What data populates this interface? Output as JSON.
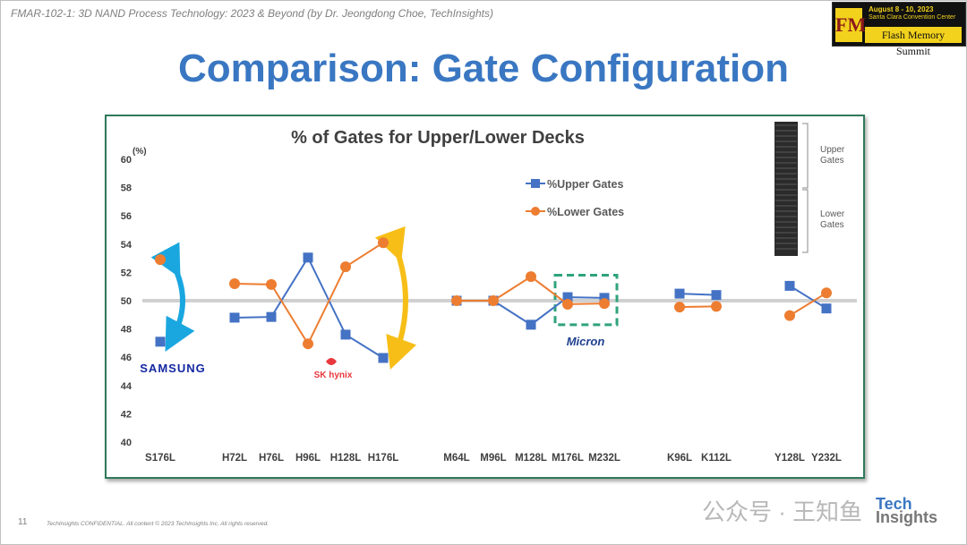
{
  "header": {
    "text": "FMAR-102-1: 3D NAND Process Technology: 2023 & Beyond (by Dr. Jeongdong Choe, TechInsights)"
  },
  "event_logo": {
    "date": "August 8 - 10, 2023",
    "venue": "Santa Clara Convention Center",
    "name": "Flash Memory Summit",
    "mark": "FM"
  },
  "slide_title": "Comparison: Gate Configuration",
  "chart_data": {
    "type": "line",
    "title": "% of Gates for Upper/Lower Decks",
    "ylabel": "(%)",
    "ylim": [
      40,
      60
    ],
    "yticks": [
      40,
      42,
      44,
      46,
      48,
      50,
      52,
      54,
      56,
      58,
      60
    ],
    "categories": [
      "S176L",
      "H72L",
      "H76L",
      "H96L",
      "H128L",
      "H176L",
      "M64L",
      "M96L",
      "M128L",
      "M176L",
      "M232L",
      "K96L",
      "K112L",
      "Y128L",
      "Y232L"
    ],
    "groups": [
      [
        0
      ],
      [
        1,
        2,
        3,
        4,
        5
      ],
      [
        6,
        7,
        8,
        9,
        10
      ],
      [
        11,
        12
      ],
      [
        13,
        14
      ]
    ],
    "series": [
      {
        "name": "%Upper Gates",
        "color": "#4472c4",
        "marker": "square",
        "values": [
          47.1,
          48.8,
          48.85,
          53.05,
          47.6,
          45.95,
          50.0,
          50.0,
          48.3,
          50.25,
          50.2,
          50.5,
          50.4,
          51.05,
          49.45
        ]
      },
      {
        "name": "%Lower Gates",
        "color": "#ed7d31",
        "marker": "circle",
        "values": [
          52.9,
          51.2,
          51.15,
          46.95,
          52.4,
          54.1,
          50.0,
          50.0,
          51.7,
          49.75,
          49.8,
          49.55,
          49.6,
          48.95,
          50.55
        ]
      }
    ],
    "reference_line": 50,
    "legend_position": "upper-center",
    "grid": false,
    "vendor_logos": [
      "SAMSUNG",
      "SK hynix",
      "Micron"
    ],
    "inset_labels": [
      "Upper Gates",
      "Lower Gates"
    ],
    "arrow_colors": {
      "samsung": "#1aa7e0",
      "hynix": "#f6be17"
    },
    "highlight_box_color": "#2fa37a"
  },
  "footer": {
    "page_number": "11",
    "confidential": "TechInsights CONFIDENTIAL. All content © 2023 TechInsights Inc. All rights reserved.",
    "watermark": "公众号 · 王知鱼",
    "logo_top": "Tech",
    "logo_bottom": "Insights"
  }
}
